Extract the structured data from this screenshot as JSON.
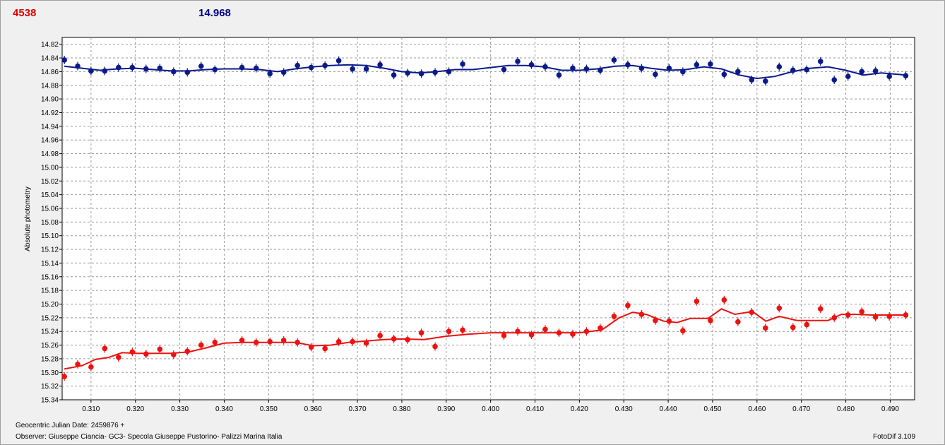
{
  "header": {
    "left_value": "4538",
    "right_value": "14.968"
  },
  "footer": {
    "jd_label": "Geocentric Julian Date: 2459876 +",
    "observer": "Observer: Giuseppe Ciancia- GC3- Specola Giuseppe Pustorino- Palizzi Marina Italia",
    "software": "FotoDif 3.109"
  },
  "colors": {
    "red": "#ee1111",
    "blue": "#0a1a8a",
    "grid": "#9a9a9a"
  },
  "chart_data": {
    "type": "scatter",
    "title": "",
    "xlabel": "",
    "ylabel": "Absolute photometry",
    "xlim": [
      0.3035,
      0.4955
    ],
    "ylim": [
      14.81,
      15.34
    ],
    "y_inverted": true,
    "grid": true,
    "xticks": [
      0.31,
      0.32,
      0.33,
      0.34,
      0.35,
      0.36,
      0.37,
      0.38,
      0.39,
      0.4,
      0.41,
      0.42,
      0.43,
      0.44,
      0.45,
      0.46,
      0.47,
      0.48,
      0.49
    ],
    "yticks": [
      14.82,
      14.84,
      14.86,
      14.88,
      14.9,
      14.92,
      14.94,
      14.96,
      14.98,
      15.0,
      15.02,
      15.04,
      15.06,
      15.08,
      15.1,
      15.12,
      15.14,
      15.16,
      15.18,
      15.2,
      15.22,
      15.24,
      15.26,
      15.28,
      15.3,
      15.32,
      15.34
    ],
    "series": [
      {
        "color": "blue",
        "points": [
          [
            0.304,
            14.843
          ],
          [
            0.307,
            14.852
          ],
          [
            0.31,
            14.859
          ],
          [
            0.3131,
            14.859
          ],
          [
            0.3162,
            14.854
          ],
          [
            0.3193,
            14.854
          ],
          [
            0.3224,
            14.856
          ],
          [
            0.3255,
            14.855
          ],
          [
            0.3286,
            14.86
          ],
          [
            0.3317,
            14.861
          ],
          [
            0.3348,
            14.852
          ],
          [
            0.3379,
            14.857
          ],
          [
            0.344,
            14.854
          ],
          [
            0.3472,
            14.855
          ],
          [
            0.3503,
            14.863
          ],
          [
            0.3534,
            14.861
          ],
          [
            0.3565,
            14.851
          ],
          [
            0.3596,
            14.854
          ],
          [
            0.3627,
            14.851
          ],
          [
            0.3658,
            14.844
          ],
          [
            0.3689,
            14.856
          ],
          [
            0.372,
            14.856
          ],
          [
            0.3751,
            14.85
          ],
          [
            0.3782,
            14.865
          ],
          [
            0.3813,
            14.862
          ],
          [
            0.3844,
            14.863
          ],
          [
            0.3875,
            14.861
          ],
          [
            0.3906,
            14.86
          ],
          [
            0.3937,
            14.849
          ],
          [
            0.403,
            14.857
          ],
          [
            0.4061,
            14.845
          ],
          [
            0.4092,
            14.85
          ],
          [
            0.4123,
            14.853
          ],
          [
            0.4154,
            14.865
          ],
          [
            0.4185,
            14.855
          ],
          [
            0.4216,
            14.856
          ],
          [
            0.4247,
            14.858
          ],
          [
            0.4278,
            14.843
          ],
          [
            0.4309,
            14.85
          ],
          [
            0.434,
            14.855
          ],
          [
            0.4371,
            14.864
          ],
          [
            0.4402,
            14.855
          ],
          [
            0.4433,
            14.86
          ],
          [
            0.4464,
            14.85
          ],
          [
            0.4495,
            14.849
          ],
          [
            0.4526,
            14.864
          ],
          [
            0.4557,
            14.86
          ],
          [
            0.4588,
            14.872
          ],
          [
            0.4619,
            14.874
          ],
          [
            0.465,
            14.853
          ],
          [
            0.4681,
            14.858
          ],
          [
            0.4712,
            14.857
          ],
          [
            0.4743,
            14.845
          ],
          [
            0.4774,
            14.872
          ],
          [
            0.4805,
            14.867
          ],
          [
            0.4836,
            14.86
          ],
          [
            0.4867,
            14.859
          ],
          [
            0.4898,
            14.867
          ],
          [
            0.4935,
            14.866
          ]
        ],
        "fit": [
          [
            0.304,
            14.852
          ],
          [
            0.308,
            14.855
          ],
          [
            0.312,
            14.858
          ],
          [
            0.316,
            14.856
          ],
          [
            0.32,
            14.855
          ],
          [
            0.324,
            14.857
          ],
          [
            0.328,
            14.859
          ],
          [
            0.332,
            14.859
          ],
          [
            0.336,
            14.857
          ],
          [
            0.34,
            14.856
          ],
          [
            0.344,
            14.856
          ],
          [
            0.348,
            14.857
          ],
          [
            0.352,
            14.86
          ],
          [
            0.356,
            14.856
          ],
          [
            0.36,
            14.853
          ],
          [
            0.364,
            14.851
          ],
          [
            0.368,
            14.85
          ],
          [
            0.372,
            14.851
          ],
          [
            0.376,
            14.855
          ],
          [
            0.38,
            14.86
          ],
          [
            0.384,
            14.862
          ],
          [
            0.388,
            14.86
          ],
          [
            0.392,
            14.857
          ],
          [
            0.396,
            14.857
          ],
          [
            0.4,
            14.854
          ],
          [
            0.404,
            14.851
          ],
          [
            0.408,
            14.851
          ],
          [
            0.412,
            14.853
          ],
          [
            0.416,
            14.858
          ],
          [
            0.42,
            14.858
          ],
          [
            0.424,
            14.856
          ],
          [
            0.428,
            14.852
          ],
          [
            0.432,
            14.851
          ],
          [
            0.436,
            14.855
          ],
          [
            0.44,
            14.858
          ],
          [
            0.444,
            14.857
          ],
          [
            0.448,
            14.853
          ],
          [
            0.452,
            14.856
          ],
          [
            0.456,
            14.865
          ],
          [
            0.46,
            14.87
          ],
          [
            0.464,
            14.867
          ],
          [
            0.468,
            14.86
          ],
          [
            0.472,
            14.855
          ],
          [
            0.476,
            14.853
          ],
          [
            0.48,
            14.858
          ],
          [
            0.484,
            14.865
          ],
          [
            0.488,
            14.862
          ],
          [
            0.4935,
            14.865
          ]
        ]
      },
      {
        "color": "red",
        "points": [
          [
            0.304,
            15.306
          ],
          [
            0.307,
            15.288
          ],
          [
            0.31,
            15.292
          ],
          [
            0.3131,
            15.265
          ],
          [
            0.3162,
            15.278
          ],
          [
            0.3193,
            15.27
          ],
          [
            0.3224,
            15.273
          ],
          [
            0.3255,
            15.266
          ],
          [
            0.3286,
            15.274
          ],
          [
            0.3317,
            15.269
          ],
          [
            0.3348,
            15.26
          ],
          [
            0.3379,
            15.256
          ],
          [
            0.344,
            15.253
          ],
          [
            0.3472,
            15.256
          ],
          [
            0.3503,
            15.255
          ],
          [
            0.3534,
            15.253
          ],
          [
            0.3565,
            15.256
          ],
          [
            0.3596,
            15.263
          ],
          [
            0.3627,
            15.265
          ],
          [
            0.3658,
            15.255
          ],
          [
            0.3689,
            15.255
          ],
          [
            0.372,
            15.257
          ],
          [
            0.3751,
            15.246
          ],
          [
            0.3782,
            15.251
          ],
          [
            0.3813,
            15.252
          ],
          [
            0.3844,
            15.242
          ],
          [
            0.3875,
            15.262
          ],
          [
            0.3906,
            15.24
          ],
          [
            0.3937,
            15.238
          ],
          [
            0.403,
            15.246
          ],
          [
            0.4061,
            15.24
          ],
          [
            0.4092,
            15.245
          ],
          [
            0.4123,
            15.237
          ],
          [
            0.4154,
            15.242
          ],
          [
            0.4185,
            15.244
          ],
          [
            0.4216,
            15.24
          ],
          [
            0.4247,
            15.235
          ],
          [
            0.4278,
            15.218
          ],
          [
            0.4309,
            15.202
          ],
          [
            0.434,
            15.215
          ],
          [
            0.4371,
            15.224
          ],
          [
            0.4402,
            15.225
          ],
          [
            0.4433,
            15.239
          ],
          [
            0.4464,
            15.196
          ],
          [
            0.4495,
            15.224
          ],
          [
            0.4526,
            15.194
          ],
          [
            0.4557,
            15.226
          ],
          [
            0.4588,
            15.212
          ],
          [
            0.4619,
            15.235
          ],
          [
            0.465,
            15.206
          ],
          [
            0.4681,
            15.234
          ],
          [
            0.4712,
            15.23
          ],
          [
            0.4743,
            15.207
          ],
          [
            0.4774,
            15.22
          ],
          [
            0.4805,
            15.216
          ],
          [
            0.4836,
            15.211
          ],
          [
            0.4867,
            15.219
          ],
          [
            0.4898,
            15.218
          ],
          [
            0.4935,
            15.216
          ]
        ],
        "fit": [
          [
            0.304,
            15.295
          ],
          [
            0.308,
            15.29
          ],
          [
            0.311,
            15.281
          ],
          [
            0.314,
            15.278
          ],
          [
            0.317,
            15.271
          ],
          [
            0.32,
            15.272
          ],
          [
            0.324,
            15.272
          ],
          [
            0.328,
            15.272
          ],
          [
            0.332,
            15.27
          ],
          [
            0.336,
            15.264
          ],
          [
            0.34,
            15.257
          ],
          [
            0.344,
            15.256
          ],
          [
            0.35,
            15.256
          ],
          [
            0.356,
            15.256
          ],
          [
            0.36,
            15.261
          ],
          [
            0.364,
            15.26
          ],
          [
            0.368,
            15.256
          ],
          [
            0.372,
            15.254
          ],
          [
            0.376,
            15.252
          ],
          [
            0.38,
            15.251
          ],
          [
            0.385,
            15.252
          ],
          [
            0.39,
            15.247
          ],
          [
            0.395,
            15.244
          ],
          [
            0.4,
            15.242
          ],
          [
            0.405,
            15.242
          ],
          [
            0.41,
            15.242
          ],
          [
            0.415,
            15.242
          ],
          [
            0.42,
            15.242
          ],
          [
            0.425,
            15.238
          ],
          [
            0.429,
            15.22
          ],
          [
            0.432,
            15.212
          ],
          [
            0.435,
            15.215
          ],
          [
            0.439,
            15.225
          ],
          [
            0.442,
            15.227
          ],
          [
            0.445,
            15.221
          ],
          [
            0.449,
            15.221
          ],
          [
            0.452,
            15.207
          ],
          [
            0.455,
            15.215
          ],
          [
            0.459,
            15.211
          ],
          [
            0.462,
            15.225
          ],
          [
            0.465,
            15.218
          ],
          [
            0.469,
            15.224
          ],
          [
            0.472,
            15.224
          ],
          [
            0.476,
            15.224
          ],
          [
            0.479,
            15.215
          ],
          [
            0.482,
            15.215
          ],
          [
            0.486,
            15.216
          ],
          [
            0.4935,
            15.216
          ]
        ]
      }
    ]
  }
}
